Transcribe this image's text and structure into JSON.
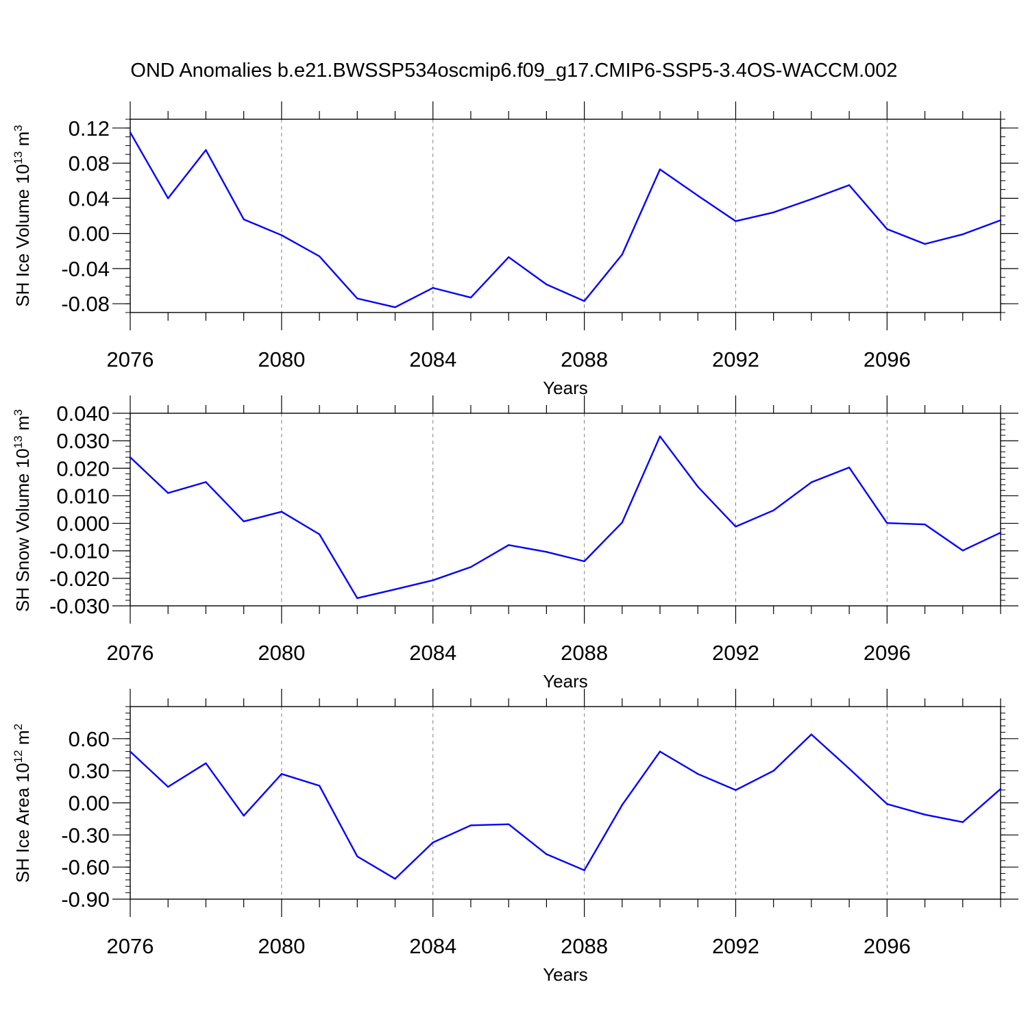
{
  "title": "OND Anomalies b.e21.BWSSP534oscmip6.f09_g17.CMIP6-SSP5-3.4OS-WACCM.002",
  "colors": {
    "line": "#0000ff",
    "axis": "#000000",
    "grid": "#808080"
  },
  "chart_data": [
    {
      "type": "line",
      "ylabel_main": "SH Ice Volume 10",
      "ylabel_exp": "13",
      "ylabel_unit": " m",
      "ylabel_unit_exp": "3",
      "xlabel": "Years",
      "xlim": [
        2076,
        2099
      ],
      "ylim": [
        -0.09,
        0.13
      ],
      "xticks": [
        2076,
        2080,
        2084,
        2088,
        2092,
        2096
      ],
      "xtick_labels": [
        "2076",
        "2080",
        "2084",
        "2088",
        "2092",
        "2096"
      ],
      "yticks": [
        0.12,
        0.08,
        0.04,
        0.0,
        -0.04,
        -0.08
      ],
      "ytick_labels": [
        "0.12",
        "0.08",
        "0.04",
        "0.00",
        "-0.04",
        "-0.08"
      ],
      "yminor_step": 0.01,
      "grid": "vertical dashed at major x ticks",
      "x": [
        2076,
        2077,
        2078,
        2079,
        2080,
        2081,
        2082,
        2083,
        2084,
        2085,
        2086,
        2087,
        2088,
        2089,
        2090,
        2091,
        2092,
        2093,
        2094,
        2095,
        2096,
        2097,
        2098,
        2099
      ],
      "values": [
        0.115,
        0.04,
        0.095,
        0.016,
        -0.002,
        -0.026,
        -0.074,
        -0.084,
        -0.062,
        -0.073,
        -0.027,
        -0.058,
        -0.077,
        -0.024,
        0.073,
        0.043,
        0.014,
        0.024,
        0.039,
        0.055,
        0.005,
        -0.012,
        -0.001,
        0.015
      ]
    },
    {
      "type": "line",
      "ylabel_main": "SH Snow Volume 10",
      "ylabel_exp": "13",
      "ylabel_unit": " m",
      "ylabel_unit_exp": "3",
      "xlabel": "Years",
      "xlim": [
        2076,
        2099
      ],
      "ylim": [
        -0.03,
        0.04
      ],
      "xticks": [
        2076,
        2080,
        2084,
        2088,
        2092,
        2096
      ],
      "xtick_labels": [
        "2076",
        "2080",
        "2084",
        "2088",
        "2092",
        "2096"
      ],
      "yticks": [
        0.04,
        0.03,
        0.02,
        0.01,
        0.0,
        -0.01,
        -0.02,
        -0.03
      ],
      "ytick_labels": [
        "0.040",
        "0.030",
        "0.020",
        "0.010",
        "0.000",
        "-0.010",
        "-0.020",
        "-0.030"
      ],
      "yminor_step": 0.002,
      "grid": "vertical dashed at major x ticks",
      "x": [
        2076,
        2077,
        2078,
        2079,
        2080,
        2081,
        2082,
        2083,
        2084,
        2085,
        2086,
        2087,
        2088,
        2089,
        2090,
        2091,
        2092,
        2093,
        2094,
        2095,
        2096,
        2097,
        2098,
        2099
      ],
      "values": [
        0.024,
        0.011,
        0.015,
        0.0007,
        0.0042,
        -0.004,
        -0.0272,
        -0.024,
        -0.0207,
        -0.0159,
        -0.0079,
        -0.0104,
        -0.0138,
        0.0003,
        0.0316,
        0.0133,
        -0.0012,
        0.0047,
        0.0149,
        0.0203,
        0.0001,
        -0.0004,
        -0.0099,
        -0.0034
      ]
    },
    {
      "type": "line",
      "ylabel_main": "SH Ice Area 10",
      "ylabel_exp": "12",
      "ylabel_unit": " m",
      "ylabel_unit_exp": "2",
      "xlabel": "Years",
      "xlim": [
        2076,
        2099
      ],
      "ylim": [
        -0.9,
        0.9
      ],
      "xticks": [
        2076,
        2080,
        2084,
        2088,
        2092,
        2096
      ],
      "xtick_labels": [
        "2076",
        "2080",
        "2084",
        "2088",
        "2092",
        "2096"
      ],
      "yticks": [
        0.6,
        0.3,
        0.0,
        -0.3,
        -0.6,
        -0.9
      ],
      "ytick_labels": [
        "0.60",
        "0.30",
        "0.00",
        "-0.30",
        "-0.60",
        "-0.90"
      ],
      "yminor_step": 0.06,
      "grid": "vertical dashed at major x ticks",
      "x": [
        2076,
        2077,
        2078,
        2079,
        2080,
        2081,
        2082,
        2083,
        2084,
        2085,
        2086,
        2087,
        2088,
        2089,
        2090,
        2091,
        2092,
        2093,
        2094,
        2095,
        2096,
        2097,
        2098,
        2099
      ],
      "values": [
        0.48,
        0.15,
        0.37,
        -0.12,
        0.27,
        0.16,
        -0.5,
        -0.71,
        -0.37,
        -0.21,
        -0.2,
        -0.48,
        -0.63,
        -0.02,
        0.48,
        0.27,
        0.12,
        0.3,
        0.64,
        0.32,
        -0.01,
        -0.11,
        -0.18,
        0.13
      ]
    }
  ]
}
